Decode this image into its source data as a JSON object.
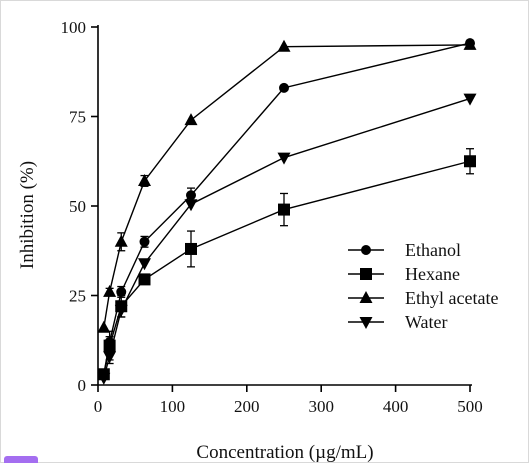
{
  "chart_data": {
    "type": "line",
    "title": "",
    "xlabel": "Concentration (µg/mL)",
    "ylabel": "Inhibition (%)",
    "x": [
      7.8,
      15.6,
      31.25,
      62.5,
      125,
      250,
      500
    ],
    "xlim": [
      0,
      500
    ],
    "ylim": [
      0,
      100
    ],
    "xticks": [
      "0",
      "100",
      "200",
      "300",
      "400",
      "500"
    ],
    "yticks": [
      "0",
      "25",
      "50",
      "75",
      "100"
    ],
    "grid": false,
    "legend_position": "lower-right",
    "series": [
      {
        "name": "Ethanol",
        "marker": "circle",
        "values": [
          3,
          12,
          26,
          40,
          53,
          83,
          95.5
        ],
        "errors": [
          0,
          1.5,
          1.5,
          1.5,
          2,
          0,
          0
        ]
      },
      {
        "name": "Hexane",
        "marker": "square",
        "values": [
          3,
          11,
          22,
          29.5,
          38,
          49,
          62.5
        ],
        "errors": [
          0,
          4,
          3,
          1,
          5,
          4.5,
          3.5
        ]
      },
      {
        "name": "Ethyl acetate",
        "marker": "triangle-up",
        "values": [
          16,
          26,
          40,
          57,
          74,
          94.5,
          95
        ],
        "errors": [
          0,
          1,
          2.5,
          1.5,
          0,
          0,
          0
        ]
      },
      {
        "name": "Water",
        "marker": "triangle-down",
        "values": [
          2,
          8,
          21,
          34,
          50.5,
          63.5,
          80
        ],
        "errors": [
          0,
          2,
          2,
          0,
          0,
          0,
          0
        ]
      }
    ]
  }
}
